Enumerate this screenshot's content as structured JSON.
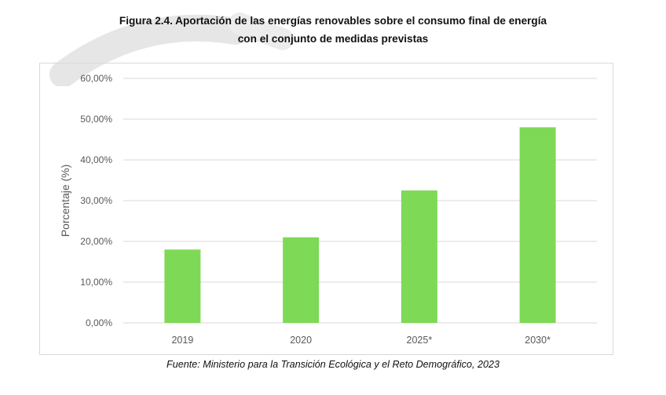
{
  "figure": {
    "title_line1": "Figura 2.4. Aportación de las energías renovables sobre el consumo final de energía",
    "title_line2": "con el conjunto de medidas previstas",
    "source": "Fuente: Ministerio para la Transición Ecológica y el Reto Demográfico, 2023"
  },
  "colors": {
    "bar": "#7ed957",
    "grid": "#d9d9d9",
    "axis_text": "#595959"
  },
  "chart_data": {
    "type": "bar",
    "categories": [
      "2019",
      "2020",
      "2025*",
      "2030*"
    ],
    "values": [
      18.0,
      21.0,
      32.5,
      48.0
    ],
    "title": "Figura 2.4. Aportación de las energías renovables sobre el consumo final de energía con el conjunto de medidas previstas",
    "xlabel": "",
    "ylabel": "Porcentaje (%)",
    "ylim": [
      0,
      60
    ],
    "yticks": [
      0,
      10,
      20,
      30,
      40,
      50,
      60
    ],
    "ytick_labels": [
      "0,00%",
      "10,00%",
      "20,00%",
      "30,00%",
      "40,00%",
      "50,00%",
      "60,00%"
    ],
    "grid": true,
    "legend": "none"
  }
}
